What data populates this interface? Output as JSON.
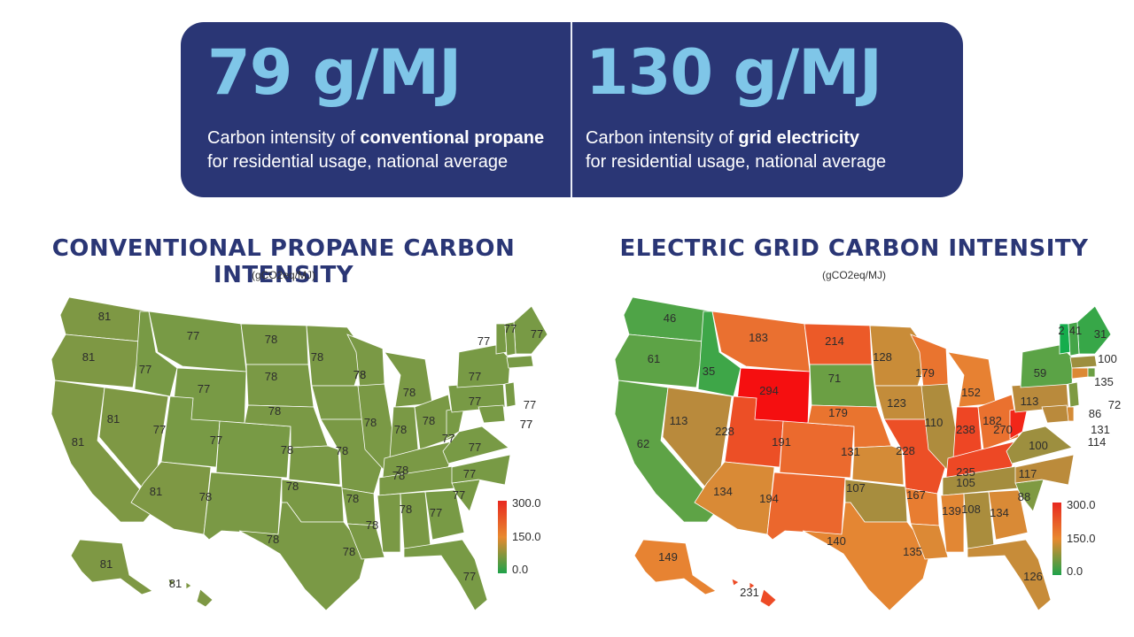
{
  "banner": {
    "left": {
      "value": "79 g/MJ",
      "caption_pre": "Carbon intensity of ",
      "caption_bold": "conventional propane",
      "caption_post": "for residential usage, national average"
    },
    "right": {
      "value": "130 g/MJ",
      "caption_pre": "Carbon intensity of ",
      "caption_bold": "grid electricity",
      "caption_post": "for residential usage, national average"
    }
  },
  "maps": [
    {
      "title": "CONVENTIONAL PROPANE CARBON INTENSITY",
      "unit": "(gCO2eq/MJ)",
      "fill": "#7a9a45",
      "legend": {
        "max": "300.0",
        "mid": "150.0",
        "min": "0.0",
        "colors": [
          "#e8281f",
          "#e8892f",
          "#1fa24a"
        ]
      },
      "states": [
        {
          "abbr": "WA",
          "value": "81",
          "color": "#7e9844"
        },
        {
          "abbr": "OR",
          "value": "81",
          "color": "#7e9844"
        },
        {
          "abbr": "CA",
          "value": "81",
          "color": "#7e9844"
        },
        {
          "abbr": "NV",
          "value": "81",
          "color": "#7e9844"
        },
        {
          "abbr": "ID",
          "value": "77",
          "color": "#789a45"
        },
        {
          "abbr": "MT",
          "value": "77",
          "color": "#789a45"
        },
        {
          "abbr": "WY",
          "value": "77",
          "color": "#789a45"
        },
        {
          "abbr": "UT",
          "value": "77",
          "color": "#789a45"
        },
        {
          "abbr": "AZ",
          "value": "81",
          "color": "#7e9844"
        },
        {
          "abbr": "CO",
          "value": "77",
          "color": "#789a45"
        },
        {
          "abbr": "NM",
          "value": "78",
          "color": "#7a9945"
        },
        {
          "abbr": "ND",
          "value": "78",
          "color": "#7a9945"
        },
        {
          "abbr": "SD",
          "value": "78",
          "color": "#7a9945"
        },
        {
          "abbr": "NE",
          "value": "78",
          "color": "#7a9945"
        },
        {
          "abbr": "KS",
          "value": "78",
          "color": "#7a9945"
        },
        {
          "abbr": "OK",
          "value": "78",
          "color": "#7a9945"
        },
        {
          "abbr": "TX",
          "value": "78",
          "color": "#7a9945"
        },
        {
          "abbr": "MN",
          "value": "78",
          "color": "#7a9945"
        },
        {
          "abbr": "IA",
          "value": "78",
          "color": "#7a9945"
        },
        {
          "abbr": "MO",
          "value": "78",
          "color": "#7a9945"
        },
        {
          "abbr": "AR",
          "value": "78",
          "color": "#7a9945"
        },
        {
          "abbr": "LA",
          "value": "78",
          "color": "#7a9945"
        },
        {
          "abbr": "WI",
          "value": "78",
          "color": "#7a9945"
        },
        {
          "abbr": "IL",
          "value": "78",
          "color": "#7a9945"
        },
        {
          "abbr": "MI",
          "value": "78",
          "color": "#7a9945"
        },
        {
          "abbr": "IN",
          "value": "78",
          "color": "#7a9945"
        },
        {
          "abbr": "OH",
          "value": "78",
          "color": "#7a9945"
        },
        {
          "abbr": "KY",
          "value": "78",
          "color": "#7a9945"
        },
        {
          "abbr": "TN",
          "value": "78",
          "color": "#7a9945"
        },
        {
          "abbr": "MS",
          "value": "78",
          "color": "#7a9945"
        },
        {
          "abbr": "AL",
          "value": "78",
          "color": "#7a9945"
        },
        {
          "abbr": "GA",
          "value": "77",
          "color": "#789a45"
        },
        {
          "abbr": "FL",
          "value": "77",
          "color": "#789a45"
        },
        {
          "abbr": "SC",
          "value": "77",
          "color": "#789a45"
        },
        {
          "abbr": "NC",
          "value": "77",
          "color": "#789a45"
        },
        {
          "abbr": "VA",
          "value": "77",
          "color": "#789a45"
        },
        {
          "abbr": "WV",
          "value": "77",
          "color": "#789a45"
        },
        {
          "abbr": "PA",
          "value": "77",
          "color": "#789a45"
        },
        {
          "abbr": "NY",
          "value": "77",
          "color": "#789a45"
        },
        {
          "abbr": "ME",
          "value": "77",
          "color": "#789a45"
        },
        {
          "abbr": "VT",
          "value": "77",
          "color": "#789a45"
        },
        {
          "abbr": "NH",
          "value": "77",
          "color": "#789a45"
        },
        {
          "abbr": "MA",
          "value": "77",
          "color": "#789a45"
        },
        {
          "abbr": "NJ",
          "value": "77",
          "color": "#789a45"
        },
        {
          "abbr": "MD",
          "value": "77",
          "color": "#789a45"
        },
        {
          "abbr": "AK",
          "value": "81",
          "color": "#7e9844"
        },
        {
          "abbr": "HI",
          "value": "81",
          "color": "#7e9844"
        }
      ]
    },
    {
      "title": "ELECTRIC GRID CARBON INTENSITY",
      "unit": "(gCO2eq/MJ)",
      "fill": "#e8832f",
      "legend": {
        "max": "300.0",
        "mid": "150.0",
        "min": "0.0",
        "colors": [
          "#e8281f",
          "#e8892f",
          "#1fa24a"
        ]
      },
      "states": [
        {
          "abbr": "WA",
          "value": "46",
          "color": "#4fa447"
        },
        {
          "abbr": "OR",
          "value": "61",
          "color": "#5da346"
        },
        {
          "abbr": "CA",
          "value": "62",
          "color": "#5ea346"
        },
        {
          "abbr": "NV",
          "value": "113",
          "color": "#b98a3c"
        },
        {
          "abbr": "ID",
          "value": "35",
          "color": "#3ea648"
        },
        {
          "abbr": "MT",
          "value": "183",
          "color": "#ea7030"
        },
        {
          "abbr": "WY",
          "value": "294",
          "color": "#f50f10"
        },
        {
          "abbr": "UT",
          "value": "228",
          "color": "#ec4f26"
        },
        {
          "abbr": "AZ",
          "value": "134",
          "color": "#d98a36"
        },
        {
          "abbr": "CO",
          "value": "191",
          "color": "#eb6a2e"
        },
        {
          "abbr": "NM",
          "value": "194",
          "color": "#eb672d"
        },
        {
          "abbr": "ND",
          "value": "214",
          "color": "#ec5a28"
        },
        {
          "abbr": "SD",
          "value": "71",
          "color": "#6b9f44"
        },
        {
          "abbr": "NE",
          "value": "179",
          "color": "#e9742f"
        },
        {
          "abbr": "KS",
          "value": "131",
          "color": "#d48b37"
        },
        {
          "abbr": "OK",
          "value": "107",
          "color": "#a78d3e"
        },
        {
          "abbr": "TX",
          "value": "140",
          "color": "#e48633"
        },
        {
          "abbr": "MN",
          "value": "128",
          "color": "#c98c38"
        },
        {
          "abbr": "IA",
          "value": "123",
          "color": "#c38c3a"
        },
        {
          "abbr": "MO",
          "value": "228",
          "color": "#ec4f26"
        },
        {
          "abbr": "AR",
          "value": "167",
          "color": "#e87d31"
        },
        {
          "abbr": "LA",
          "value": "135",
          "color": "#dc8935"
        },
        {
          "abbr": "WI",
          "value": "179",
          "color": "#e9742f"
        },
        {
          "abbr": "IL",
          "value": "110",
          "color": "#ae8c3d"
        },
        {
          "abbr": "MI",
          "value": "152",
          "color": "#e78132"
        },
        {
          "abbr": "IN",
          "value": "238",
          "color": "#ee4624"
        },
        {
          "abbr": "OH",
          "value": "182",
          "color": "#ea712f"
        },
        {
          "abbr": "KY",
          "value": "235",
          "color": "#ed4825"
        },
        {
          "abbr": "TN",
          "value": "105",
          "color": "#a48d3e"
        },
        {
          "abbr": "MS",
          "value": "139",
          "color": "#e28734"
        },
        {
          "abbr": "AL",
          "value": "108",
          "color": "#aa8d3d"
        },
        {
          "abbr": "GA",
          "value": "134",
          "color": "#d98a36"
        },
        {
          "abbr": "FL",
          "value": "126",
          "color": "#c78c39"
        },
        {
          "abbr": "SC",
          "value": "88",
          "color": "#7f9a42"
        },
        {
          "abbr": "NC",
          "value": "117",
          "color": "#bb8b3b"
        },
        {
          "abbr": "VA",
          "value": "100",
          "color": "#9d8f3f"
        },
        {
          "abbr": "WV",
          "value": "270",
          "color": "#f22619"
        },
        {
          "abbr": "PA",
          "value": "113",
          "color": "#b98a3c"
        },
        {
          "abbr": "NY",
          "value": "59",
          "color": "#5ba346"
        },
        {
          "abbr": "ME",
          "value": "31",
          "color": "#37a748"
        },
        {
          "abbr": "VT",
          "value": "2",
          "color": "#15ad4c"
        },
        {
          "abbr": "NH",
          "value": "41",
          "color": "#45a548"
        },
        {
          "abbr": "MA",
          "value": "100",
          "color": "#9d8f3f"
        },
        {
          "abbr": "CT",
          "value": "135",
          "color": "#dc8935"
        },
        {
          "abbr": "RI",
          "value": "72",
          "color": "#6c9f44"
        },
        {
          "abbr": "NJ",
          "value": "86",
          "color": "#7e9a42"
        },
        {
          "abbr": "DE",
          "value": "131",
          "color": "#d48b37"
        },
        {
          "abbr": "MD",
          "value": "114",
          "color": "#ba8a3c"
        },
        {
          "abbr": "AK",
          "value": "149",
          "color": "#e78332"
        },
        {
          "abbr": "HI",
          "value": "231",
          "color": "#ed4b26"
        }
      ]
    }
  ]
}
